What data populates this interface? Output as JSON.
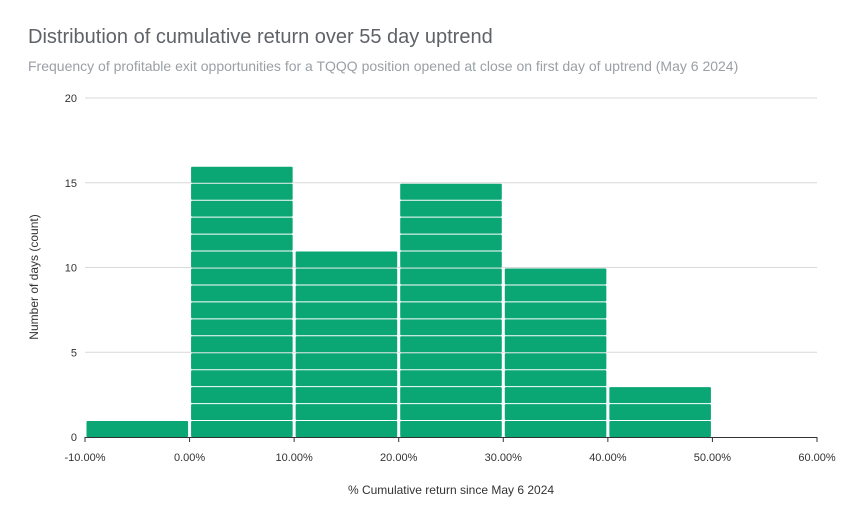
{
  "chart_data": {
    "type": "bar",
    "title": "Distribution of cumulative return over 55 day uptrend",
    "subtitle": "Frequency of profitable exit opportunities for a TQQQ position opened at close on first day of uptrend (May 6 2024)",
    "xlabel": "% Cumulative return since May 6 2024",
    "ylabel": "Number of days (count)",
    "x_ticks": [
      "-10.00%",
      "0.00%",
      "10.00%",
      "20.00%",
      "30.00%",
      "40.00%",
      "50.00%",
      "60.00%"
    ],
    "y_ticks": [
      "0",
      "5",
      "10",
      "15",
      "20"
    ],
    "bins": [
      {
        "from": -10,
        "to": 0,
        "value": 1
      },
      {
        "from": 0,
        "to": 10,
        "value": 16
      },
      {
        "from": 10,
        "to": 20,
        "value": 11
      },
      {
        "from": 20,
        "to": 30,
        "value": 15
      },
      {
        "from": 30,
        "to": 40,
        "value": 10
      },
      {
        "from": 40,
        "to": 50,
        "value": 3
      },
      {
        "from": 50,
        "to": 60,
        "value": 0
      }
    ],
    "xlim": [
      -10,
      60
    ],
    "ylim": [
      0,
      20
    ],
    "grid": true,
    "legend": "none",
    "bar_color": "#0aa674",
    "gridline_color": "#d9d9d9"
  }
}
